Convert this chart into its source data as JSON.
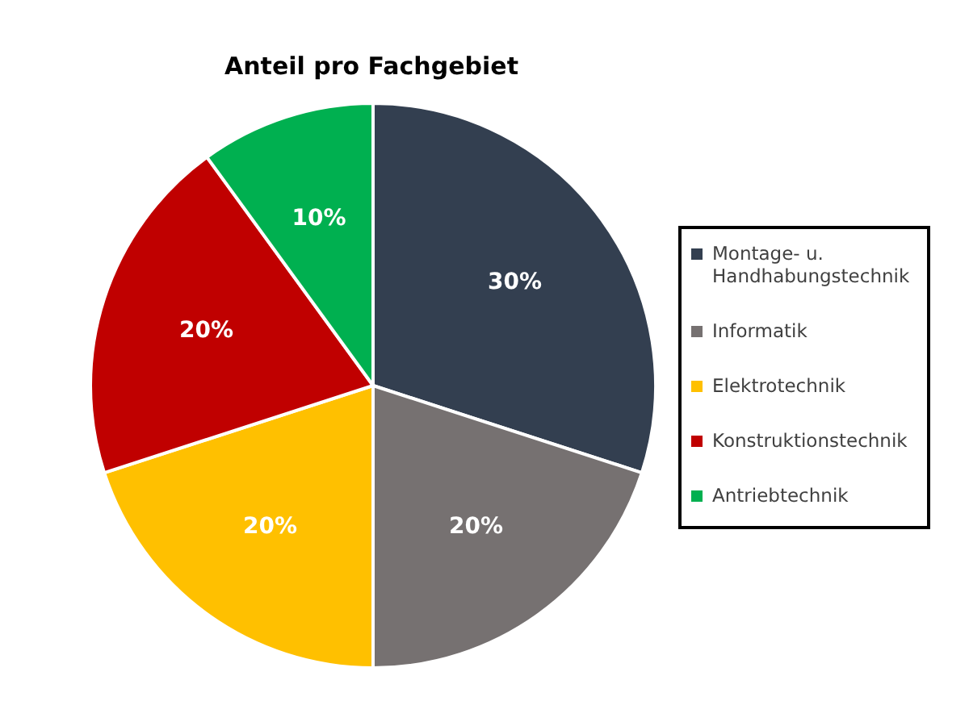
{
  "chart_data": {
    "type": "pie",
    "title": "Anteil pro Fachgebiet",
    "categories": [
      "Montage- u. Handhabungstechnik",
      "Informatik",
      "Elektrotechnik",
      "Konstruktionstechnik",
      "Antriebtechnik"
    ],
    "values": [
      30,
      20,
      20,
      20,
      10
    ],
    "colors": [
      "#333f50",
      "#767171",
      "#ffc000",
      "#c00000",
      "#00b050"
    ],
    "value_labels": [
      "30%",
      "20%",
      "20%",
      "20%",
      "10%"
    ],
    "legend": "right"
  }
}
